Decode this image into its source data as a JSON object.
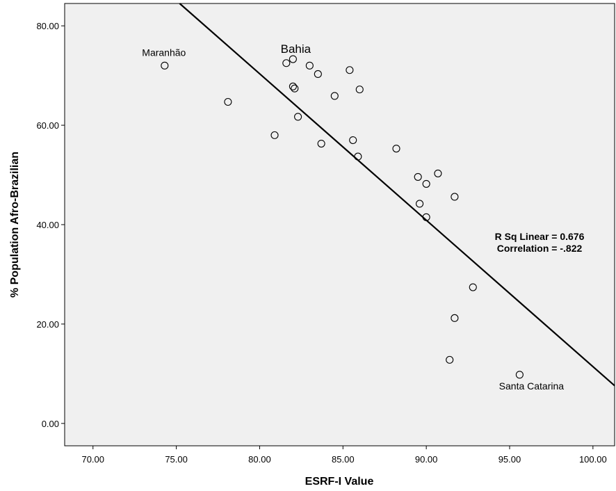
{
  "chart_data": {
    "type": "scatter",
    "xlabel": "ESRF-I Value",
    "ylabel": "% Population Afro-Brazilian",
    "xlim": [
      68.3,
      101.3
    ],
    "ylim": [
      -4.5,
      84.5
    ],
    "x_ticks": [
      "70.00",
      "75.00",
      "80.00",
      "85.00",
      "90.00",
      "95.00",
      "100.00"
    ],
    "y_ticks": [
      "0.00",
      "20.00",
      "40.00",
      "60.00",
      "80.00"
    ],
    "background": "#f0f0f0",
    "grid": false,
    "points": [
      {
        "x": 74.3,
        "y": 72.0,
        "label": "Maranhão"
      },
      {
        "x": 78.1,
        "y": 64.7
      },
      {
        "x": 80.9,
        "y": 58.0
      },
      {
        "x": 81.6,
        "y": 72.5
      },
      {
        "x": 82.0,
        "y": 73.3,
        "label": "Bahia"
      },
      {
        "x": 82.0,
        "y": 67.8
      },
      {
        "x": 82.1,
        "y": 67.4
      },
      {
        "x": 82.3,
        "y": 61.7
      },
      {
        "x": 83.0,
        "y": 72.0
      },
      {
        "x": 83.5,
        "y": 70.3
      },
      {
        "x": 83.7,
        "y": 56.3
      },
      {
        "x": 84.5,
        "y": 65.9
      },
      {
        "x": 85.4,
        "y": 71.1
      },
      {
        "x": 85.6,
        "y": 57.0
      },
      {
        "x": 85.9,
        "y": 53.7
      },
      {
        "x": 86.0,
        "y": 67.2
      },
      {
        "x": 88.2,
        "y": 55.3
      },
      {
        "x": 89.5,
        "y": 49.6
      },
      {
        "x": 89.6,
        "y": 44.2
      },
      {
        "x": 90.0,
        "y": 41.5
      },
      {
        "x": 90.0,
        "y": 48.2
      },
      {
        "x": 90.7,
        "y": 50.3
      },
      {
        "x": 91.4,
        "y": 12.8
      },
      {
        "x": 91.7,
        "y": 45.6
      },
      {
        "x": 91.7,
        "y": 21.2
      },
      {
        "x": 92.8,
        "y": 27.4
      },
      {
        "x": 95.6,
        "y": 9.8,
        "label": "Santa Catarina"
      }
    ],
    "fit_line": {
      "x": [
        75.2,
        101.3
      ],
      "y": [
        84.5,
        7.6
      ]
    },
    "annotation": {
      "line1": "R Sq Linear = 0.676",
      "line2": "Correlation = -.822"
    }
  }
}
